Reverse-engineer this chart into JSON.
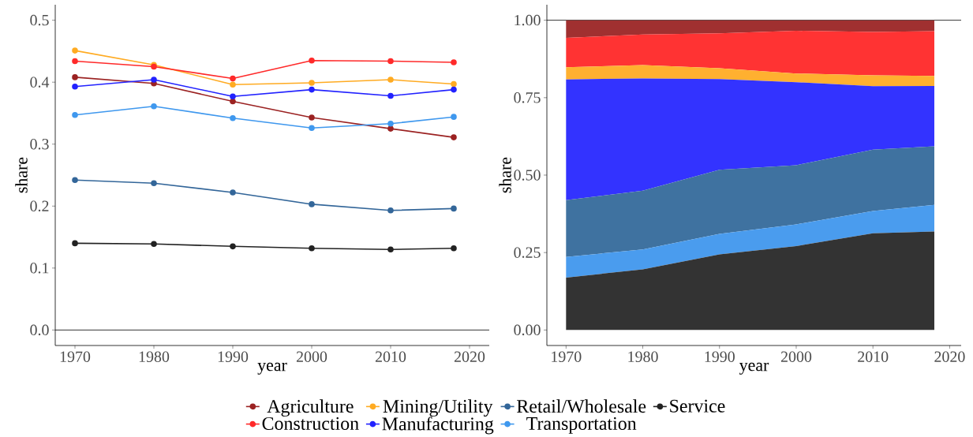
{
  "chart_data": [
    {
      "type": "line",
      "xlabel": "year",
      "ylabel": "share",
      "x": [
        1970,
        1980,
        1990,
        2000,
        2010,
        2018
      ],
      "xlim": [
        1967.5,
        2022.5
      ],
      "ylim": [
        -0.025,
        0.525
      ],
      "xticks": [
        1970,
        1980,
        1990,
        2000,
        2010,
        2020
      ],
      "yticks": [
        {
          "value": 0,
          "label": "0.0"
        },
        0.1,
        0.2,
        0.3,
        0.4,
        0.5
      ],
      "marker": "circle",
      "legend": "bottom",
      "grid": false,
      "ref_lines": [
        {
          "axis": "y",
          "value": 0,
          "color": "#000000"
        }
      ],
      "series": [
        {
          "name": "Agriculture",
          "color": "#9b2222",
          "values": [
            0.408,
            0.398,
            0.369,
            0.343,
            0.325,
            0.311
          ]
        },
        {
          "name": "Construction",
          "color": "#ff2a2a",
          "values": [
            0.434,
            0.425,
            0.406,
            0.435,
            0.434,
            0.432
          ]
        },
        {
          "name": "Mining/Utility",
          "color": "#ffab22",
          "values": [
            0.451,
            0.428,
            0.396,
            0.399,
            0.404,
            0.397
          ]
        },
        {
          "name": "Manufacturing",
          "color": "#2222ff",
          "values": [
            0.393,
            0.404,
            0.377,
            0.388,
            0.378,
            0.388
          ]
        },
        {
          "name": "Retail/Wholesale",
          "color": "#336699",
          "values": [
            0.242,
            0.237,
            0.222,
            0.203,
            0.193,
            0.196
          ]
        },
        {
          "name": "Transportation",
          "color": "#3f98ee",
          "values": [
            0.347,
            0.361,
            0.342,
            0.326,
            0.333,
            0.344
          ]
        },
        {
          "name": "Service",
          "color": "#222222",
          "values": [
            0.14,
            0.139,
            0.135,
            0.132,
            0.13,
            0.132
          ]
        }
      ]
    },
    {
      "type": "area",
      "stacked": true,
      "xlabel": "year",
      "ylabel": "share",
      "x": [
        1970,
        1980,
        1990,
        2000,
        2010,
        2018
      ],
      "xlim": [
        1967.5,
        2021.5
      ],
      "ylim": [
        -0.05,
        1.05
      ],
      "xticks": [
        1970,
        1980,
        1990,
        2000,
        2010,
        2020
      ],
      "yticks": [
        {
          "value": 0,
          "label": "0.00"
        },
        {
          "value": 0.25,
          "label": "0.25"
        },
        {
          "value": 0.5,
          "label": "0.50"
        },
        {
          "value": 0.75,
          "label": "0.75"
        },
        {
          "value": 1,
          "label": "1.00"
        }
      ],
      "grid": false,
      "ref_lines": [
        {
          "axis": "y",
          "value": 1,
          "color": "#000000"
        }
      ],
      "series": [
        {
          "color": "#333333",
          "values": [
            0.169,
            0.196,
            0.244,
            0.271,
            0.312,
            0.318
          ]
        },
        {
          "color": "#4a9cee",
          "values": [
            0.067,
            0.064,
            0.066,
            0.07,
            0.072,
            0.086
          ]
        },
        {
          "color": "#3f72a0",
          "values": [
            0.183,
            0.19,
            0.207,
            0.191,
            0.198,
            0.189
          ]
        },
        {
          "color": "#3333ff",
          "values": [
            0.39,
            0.362,
            0.293,
            0.268,
            0.205,
            0.195
          ]
        },
        {
          "color": "#ffb030",
          "values": [
            0.039,
            0.043,
            0.035,
            0.028,
            0.035,
            0.032
          ]
        },
        {
          "color": "#ff3333",
          "values": [
            0.095,
            0.099,
            0.113,
            0.138,
            0.14,
            0.145
          ]
        },
        {
          "color": "#a03030",
          "values": [
            0.057,
            0.046,
            0.042,
            0.034,
            0.038,
            0.035
          ]
        }
      ]
    }
  ]
}
